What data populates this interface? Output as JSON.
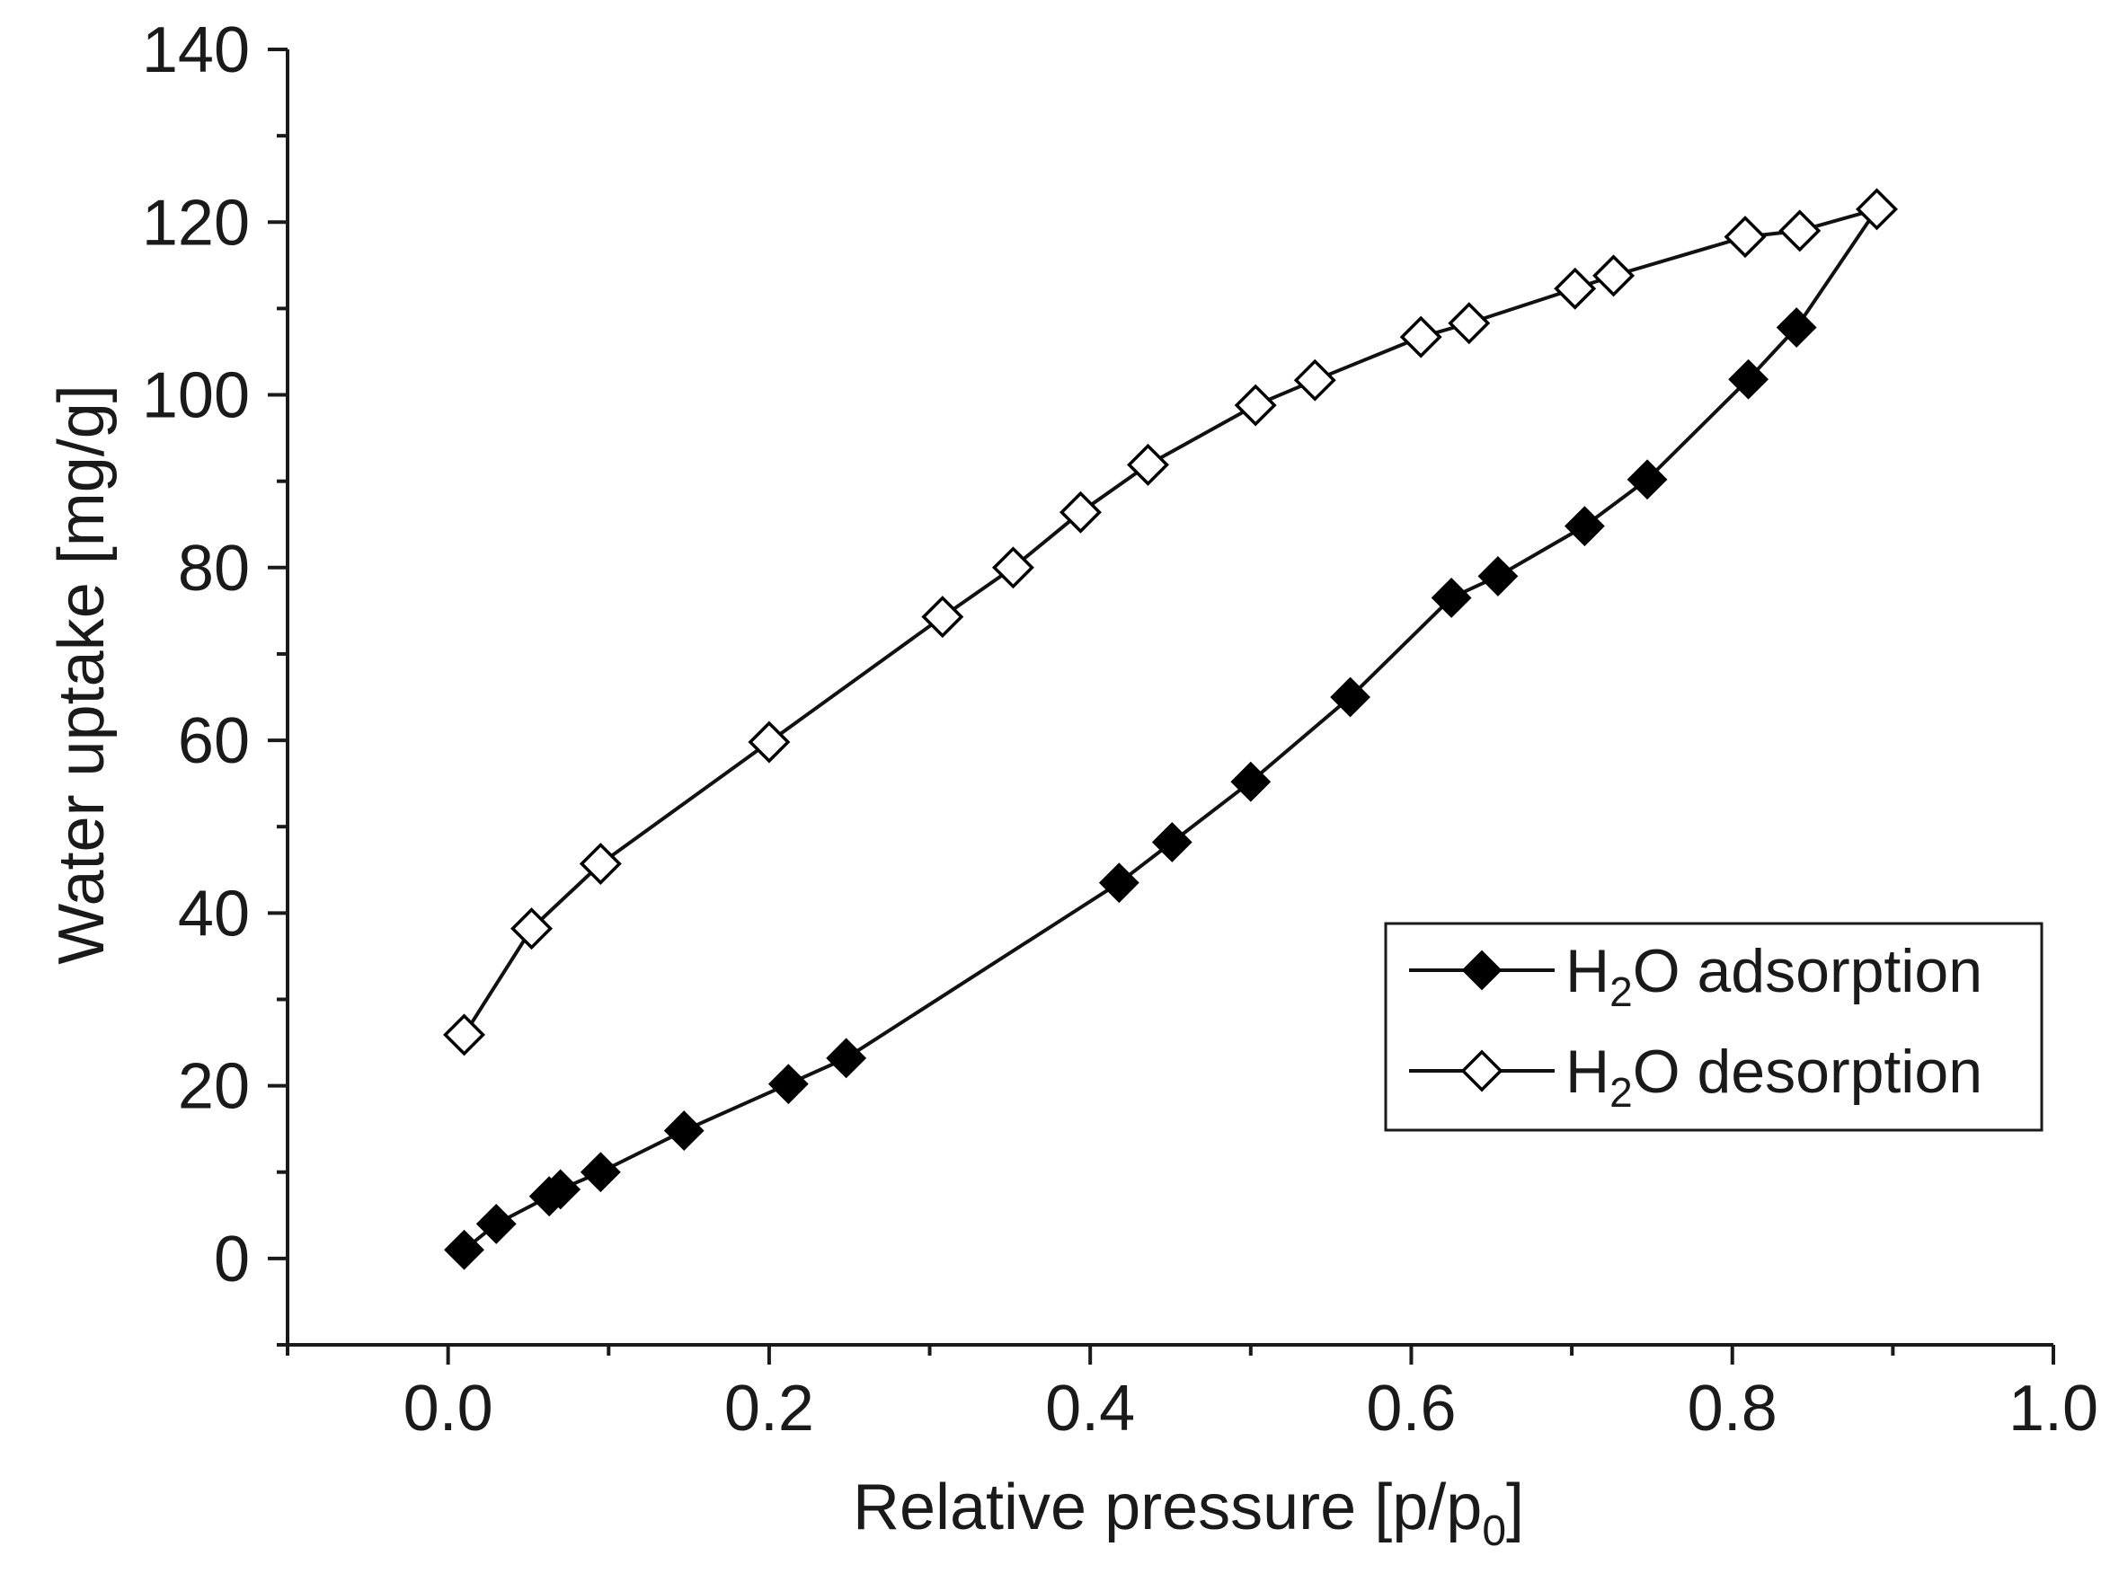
{
  "chart_data": {
    "type": "line",
    "title": "",
    "xlabel": "Relative pressure [p/p",
    "xlabel_sub": "0",
    "xlabel_close": "]",
    "ylabel": "Water uptake [mg/g]",
    "xlim": [
      -0.1,
      1.0
    ],
    "ylim": [
      -10,
      140
    ],
    "x_ticks": [
      0.0,
      0.2,
      0.4,
      0.6,
      0.8,
      1.0
    ],
    "x_tick_labels": [
      "0.0",
      "0.2",
      "0.4",
      "0.6",
      "0.8",
      "1.0"
    ],
    "x_minor_ticks": [
      -0.1,
      0.1,
      0.3,
      0.5,
      0.7,
      0.9
    ],
    "y_ticks": [
      0,
      20,
      40,
      60,
      80,
      100,
      120,
      140
    ],
    "y_tick_labels": [
      "0",
      "20",
      "40",
      "60",
      "80",
      "100",
      "120",
      "140"
    ],
    "y_minor_ticks": [
      -10,
      10,
      30,
      50,
      70,
      90,
      110,
      130
    ],
    "grid": false,
    "legend_position": "bottom-right",
    "series": [
      {
        "name": "adsorption",
        "legend_prefix": "H",
        "legend_sub": "2",
        "legend_suffix": "O adsorption",
        "marker": "filled-diamond",
        "color": "#000000",
        "points": [
          [
            0.01,
            1.0
          ],
          [
            0.03,
            4.0
          ],
          [
            0.063,
            7.2
          ],
          [
            0.07,
            8.0
          ],
          [
            0.095,
            10.0
          ],
          [
            0.147,
            14.8
          ],
          [
            0.212,
            20.2
          ],
          [
            0.248,
            23.2
          ],
          [
            0.418,
            43.5
          ],
          [
            0.451,
            48.2
          ],
          [
            0.5,
            55.2
          ],
          [
            0.562,
            65.0
          ],
          [
            0.625,
            76.5
          ],
          [
            0.654,
            79.0
          ],
          [
            0.708,
            84.8
          ],
          [
            0.747,
            90.2
          ],
          [
            0.81,
            101.8
          ],
          [
            0.84,
            107.8
          ],
          [
            0.89,
            121.5
          ]
        ]
      },
      {
        "name": "desorption",
        "legend_prefix": "H",
        "legend_sub": "2",
        "legend_suffix": "O desorption",
        "marker": "open-diamond",
        "color": "#000000",
        "points": [
          [
            0.89,
            121.5
          ],
          [
            0.842,
            119.0
          ],
          [
            0.808,
            118.3
          ],
          [
            0.726,
            113.8
          ],
          [
            0.702,
            112.3
          ],
          [
            0.636,
            108.3
          ],
          [
            0.606,
            106.7
          ],
          [
            0.54,
            101.7
          ],
          [
            0.503,
            98.8
          ],
          [
            0.436,
            91.9
          ],
          [
            0.394,
            86.4
          ],
          [
            0.352,
            80.0
          ],
          [
            0.308,
            74.3
          ],
          [
            0.2,
            59.8
          ],
          [
            0.095,
            45.7
          ],
          [
            0.052,
            38.2
          ],
          [
            0.01,
            25.9
          ]
        ]
      }
    ]
  }
}
